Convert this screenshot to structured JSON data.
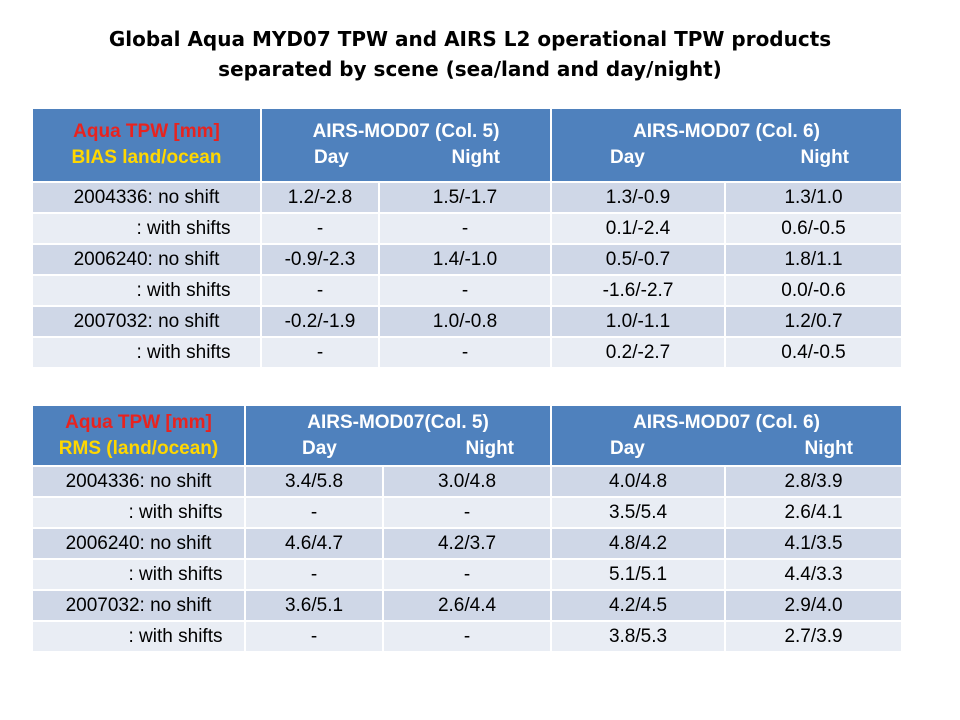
{
  "title": {
    "line1": "Global Aqua MYD07 TPW and AIRS L2 operational TPW products",
    "line2": "separated by scene (sea/land and day/night)"
  },
  "colors": {
    "header_bg": "#4f81bd",
    "row_dark": "#cfd7e7",
    "row_light": "#e9edf4",
    "highlight_text": "#1f4ec8",
    "aqua_red": "#e8231f",
    "metric_yellow": "#ffd700"
  },
  "bias_table": {
    "corner_line1_red": "Aqua",
    "corner_line1_rest": " TPW [mm]",
    "corner_line2": "BIAS  land/ocean",
    "col5_header": "AIRS-MOD07 (Col. 5)",
    "col5_day": "Day",
    "col5_night": "Night",
    "col6_header": "AIRS-MOD07 (Col. 6)",
    "col6_day": "Day",
    "col6_night": "Night",
    "rows": [
      {
        "label": "2004336:  no shift",
        "c5_day": "1.2/-2.8",
        "c5_night": "1.5/-1.7",
        "c6_day": "1.3/-0.9",
        "c6_night": "1.3/1.0"
      },
      {
        "label": ":  with shifts",
        "c5_day": "-",
        "c5_night": "-",
        "c6_day": "0.1/-2.4",
        "c6_night": "0.6/-0.5"
      },
      {
        "label": "2006240:  no shift",
        "c5_day": "-0.9/-2.3",
        "c5_night": "1.4/-1.0",
        "c6_day": "0.5/-0.7",
        "c6_night": "1.8/1.1"
      },
      {
        "label": ":  with shifts",
        "c5_day": "-",
        "c5_night": "-",
        "c6_day": "-1.6/-2.7",
        "c6_night": "0.0/-0.6"
      },
      {
        "label": "2007032:  no shift",
        "c5_day": "-0.2/-1.9",
        "c5_night": "1.0/-0.8",
        "c6_day": "1.0/-1.1",
        "c6_night": "1.2/0.7"
      },
      {
        "label": ":  with shifts",
        "c5_day": "-",
        "c5_night": "-",
        "c6_day": "0.2/-2.7",
        "c6_night": "0.4/-0.5"
      }
    ]
  },
  "rms_table": {
    "corner_line1_red": "Aqua",
    "corner_line1_rest": " TPW [mm]",
    "corner_line2": "RMS (land/ocean)",
    "col5_header": "AIRS-MOD07(Col. 5)",
    "col5_day": "Day",
    "col5_night": "Night",
    "col6_header": "AIRS-MOD07 (Col. 6)",
    "col6_day": "Day",
    "col6_night": "Night",
    "rows": [
      {
        "label": "2004336:  no shift",
        "c5_day": "3.4/5.8",
        "c5_night": "3.0/4.8",
        "c6_day": "4.0/4.8",
        "c6_night": "2.8/3.9"
      },
      {
        "label": ":  with shifts",
        "c5_day": "-",
        "c5_night": "-",
        "c6_day": "3.5/5.4",
        "c6_night": "2.6/4.1"
      },
      {
        "label": "2006240:  no shift",
        "c5_day": "4.6/4.7",
        "c5_night": "4.2/3.7",
        "c6_day": "4.8/4.2",
        "c6_night": "4.1/3.5"
      },
      {
        "label": ":  with shifts",
        "c5_day": "-",
        "c5_night": "-",
        "c6_day": "5.1/5.1",
        "c6_night": "4.4/3.3"
      },
      {
        "label": "2007032:  no shift",
        "c5_day": "3.6/5.1",
        "c5_night": "2.6/4.4",
        "c6_day": "4.2/4.5",
        "c6_night": "2.9/4.0"
      },
      {
        "label": ":  with shifts",
        "c5_day": "-",
        "c5_night": "-",
        "c6_day": "3.8/5.3",
        "c6_night": "2.7/3.9"
      }
    ]
  }
}
